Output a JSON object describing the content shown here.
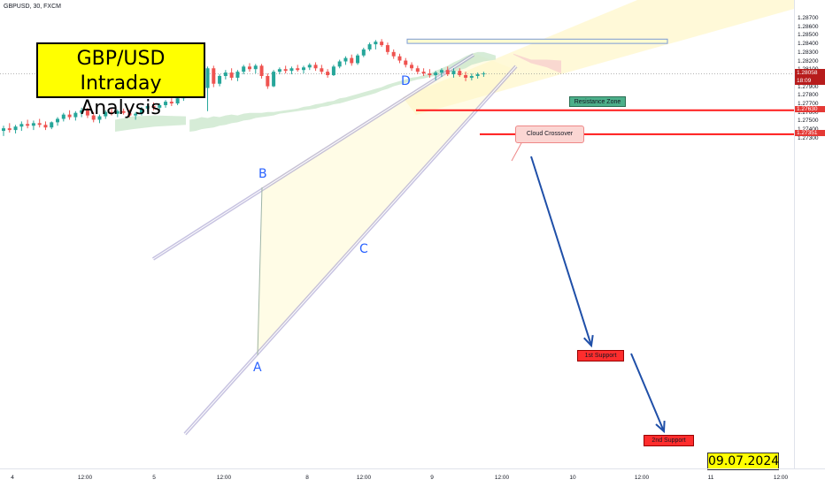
{
  "header": {
    "ticker": "GBPUSD, 30, FXCM"
  },
  "title": {
    "line1": "GBP/USD",
    "line2": "Intraday Analysis"
  },
  "date_label": "09.07.2024",
  "annotations": {
    "resistance_zone": "Resistance Zone",
    "cloud_crossover": "Cloud Crossover",
    "support_1": "1st Support",
    "support_2": "2nd Support",
    "point_a": "A",
    "point_b": "B",
    "point_c": "C",
    "point_d": "D"
  },
  "colors": {
    "bull": "#26a69a",
    "bear": "#ef5350",
    "support_line": "#ff1a1a",
    "channel": "#9b93c9",
    "arrow": "#1f4fa8",
    "cloud_green": "#c8e6c9",
    "cloud_red": "#f8d4cf"
  },
  "chart_data": {
    "type": "candlestick",
    "symbol": "GBPUSD",
    "timeframe": "30",
    "source": "FXCM",
    "ylim": [
      1.2725,
      1.288
    ],
    "y_ticks": [
      "1.28700",
      "1.28600",
      "1.28500",
      "1.28400",
      "1.28300",
      "1.28200",
      "1.28100",
      "1.28000",
      "1.27900",
      "1.27800",
      "1.27700",
      "1.27600",
      "1.27500",
      "1.27400",
      "1.27300"
    ],
    "x_ticks": [
      "4",
      "12:00",
      "5",
      "12:00",
      "8",
      "12:00",
      "9",
      "12:00",
      "10",
      "12:00",
      "11",
      "12:00"
    ],
    "current_price": {
      "value": "1.28058",
      "countdown": "18:09"
    },
    "support_levels": [
      {
        "label": "1st Support",
        "value": "1.27630"
      },
      {
        "label": "2nd Support",
        "value": "1.27351"
      }
    ],
    "resistance_zone": {
      "from": 1.2841,
      "to": 1.2846
    },
    "candles": [
      {
        "o": 1.2739,
        "h": 1.2745,
        "l": 1.2733,
        "c": 1.2742
      },
      {
        "o": 1.2742,
        "h": 1.2748,
        "l": 1.2737,
        "c": 1.274
      },
      {
        "o": 1.274,
        "h": 1.2746,
        "l": 1.2736,
        "c": 1.2744
      },
      {
        "o": 1.2744,
        "h": 1.275,
        "l": 1.2739,
        "c": 1.2747
      },
      {
        "o": 1.2747,
        "h": 1.2752,
        "l": 1.2742,
        "c": 1.2745
      },
      {
        "o": 1.2745,
        "h": 1.2751,
        "l": 1.274,
        "c": 1.2748
      },
      {
        "o": 1.2748,
        "h": 1.2753,
        "l": 1.2743,
        "c": 1.2746
      },
      {
        "o": 1.2746,
        "h": 1.275,
        "l": 1.274,
        "c": 1.2743
      },
      {
        "o": 1.2743,
        "h": 1.275,
        "l": 1.2741,
        "c": 1.2749
      },
      {
        "o": 1.2749,
        "h": 1.2755,
        "l": 1.2745,
        "c": 1.2753
      },
      {
        "o": 1.2753,
        "h": 1.276,
        "l": 1.275,
        "c": 1.2758
      },
      {
        "o": 1.2758,
        "h": 1.2763,
        "l": 1.2752,
        "c": 1.2755
      },
      {
        "o": 1.2755,
        "h": 1.2762,
        "l": 1.2751,
        "c": 1.276
      },
      {
        "o": 1.276,
        "h": 1.2766,
        "l": 1.2755,
        "c": 1.2763
      },
      {
        "o": 1.2763,
        "h": 1.2766,
        "l": 1.2754,
        "c": 1.2757
      },
      {
        "o": 1.2757,
        "h": 1.2761,
        "l": 1.2749,
        "c": 1.2752
      },
      {
        "o": 1.2752,
        "h": 1.2758,
        "l": 1.2748,
        "c": 1.2756
      },
      {
        "o": 1.2756,
        "h": 1.2763,
        "l": 1.2753,
        "c": 1.2761
      },
      {
        "o": 1.2761,
        "h": 1.2765,
        "l": 1.2757,
        "c": 1.2759
      },
      {
        "o": 1.2759,
        "h": 1.2764,
        "l": 1.2755,
        "c": 1.2762
      },
      {
        "o": 1.2762,
        "h": 1.2765,
        "l": 1.2758,
        "c": 1.276
      },
      {
        "o": 1.276,
        "h": 1.2764,
        "l": 1.2755,
        "c": 1.2757
      },
      {
        "o": 1.2757,
        "h": 1.2761,
        "l": 1.2752,
        "c": 1.2759
      },
      {
        "o": 1.2759,
        "h": 1.2767,
        "l": 1.2757,
        "c": 1.2765
      },
      {
        "o": 1.2765,
        "h": 1.277,
        "l": 1.2761,
        "c": 1.2768
      },
      {
        "o": 1.2768,
        "h": 1.2772,
        "l": 1.2763,
        "c": 1.2766
      },
      {
        "o": 1.2766,
        "h": 1.2771,
        "l": 1.2762,
        "c": 1.2769
      },
      {
        "o": 1.2769,
        "h": 1.2775,
        "l": 1.2766,
        "c": 1.2773
      },
      {
        "o": 1.2773,
        "h": 1.2777,
        "l": 1.2768,
        "c": 1.2771
      },
      {
        "o": 1.2771,
        "h": 1.2779,
        "l": 1.2769,
        "c": 1.2777
      },
      {
        "o": 1.2777,
        "h": 1.2784,
        "l": 1.2774,
        "c": 1.2782
      },
      {
        "o": 1.2782,
        "h": 1.2788,
        "l": 1.2778,
        "c": 1.2786
      },
      {
        "o": 1.2786,
        "h": 1.2795,
        "l": 1.2783,
        "c": 1.2793
      },
      {
        "o": 1.2793,
        "h": 1.2797,
        "l": 1.2785,
        "c": 1.2789
      },
      {
        "o": 1.2789,
        "h": 1.2814,
        "l": 1.2762,
        "c": 1.2812
      },
      {
        "o": 1.2812,
        "h": 1.2815,
        "l": 1.279,
        "c": 1.2794
      },
      {
        "o": 1.2794,
        "h": 1.2805,
        "l": 1.2791,
        "c": 1.2803
      },
      {
        "o": 1.2803,
        "h": 1.281,
        "l": 1.2799,
        "c": 1.2807
      },
      {
        "o": 1.2807,
        "h": 1.2812,
        "l": 1.2798,
        "c": 1.2801
      },
      {
        "o": 1.2801,
        "h": 1.281,
        "l": 1.2797,
        "c": 1.2808
      },
      {
        "o": 1.2808,
        "h": 1.2816,
        "l": 1.2805,
        "c": 1.2814
      },
      {
        "o": 1.2814,
        "h": 1.2818,
        "l": 1.2808,
        "c": 1.2811
      },
      {
        "o": 1.2811,
        "h": 1.2817,
        "l": 1.2806,
        "c": 1.2815
      },
      {
        "o": 1.2815,
        "h": 1.2817,
        "l": 1.28,
        "c": 1.2803
      },
      {
        "o": 1.2803,
        "h": 1.2806,
        "l": 1.2788,
        "c": 1.2791
      },
      {
        "o": 1.2791,
        "h": 1.281,
        "l": 1.279,
        "c": 1.2808
      },
      {
        "o": 1.2808,
        "h": 1.2813,
        "l": 1.2805,
        "c": 1.2811
      },
      {
        "o": 1.2811,
        "h": 1.2815,
        "l": 1.2806,
        "c": 1.2809
      },
      {
        "o": 1.2809,
        "h": 1.2814,
        "l": 1.2805,
        "c": 1.2812
      },
      {
        "o": 1.2812,
        "h": 1.2816,
        "l": 1.2808,
        "c": 1.281
      },
      {
        "o": 1.281,
        "h": 1.2815,
        "l": 1.2806,
        "c": 1.2813
      },
      {
        "o": 1.2813,
        "h": 1.2818,
        "l": 1.281,
        "c": 1.2816
      },
      {
        "o": 1.2816,
        "h": 1.2819,
        "l": 1.2809,
        "c": 1.2812
      },
      {
        "o": 1.2812,
        "h": 1.2816,
        "l": 1.2805,
        "c": 1.2808
      },
      {
        "o": 1.2808,
        "h": 1.2811,
        "l": 1.2801,
        "c": 1.2804
      },
      {
        "o": 1.2804,
        "h": 1.2816,
        "l": 1.2803,
        "c": 1.2814
      },
      {
        "o": 1.2814,
        "h": 1.2822,
        "l": 1.2812,
        "c": 1.282
      },
      {
        "o": 1.282,
        "h": 1.2826,
        "l": 1.2816,
        "c": 1.2824
      },
      {
        "o": 1.2824,
        "h": 1.2828,
        "l": 1.2815,
        "c": 1.2818
      },
      {
        "o": 1.2818,
        "h": 1.2829,
        "l": 1.2816,
        "c": 1.2827
      },
      {
        "o": 1.2827,
        "h": 1.2836,
        "l": 1.2825,
        "c": 1.2834
      },
      {
        "o": 1.2834,
        "h": 1.2842,
        "l": 1.2832,
        "c": 1.284
      },
      {
        "o": 1.284,
        "h": 1.2845,
        "l": 1.2834,
        "c": 1.2843
      },
      {
        "o": 1.2843,
        "h": 1.2846,
        "l": 1.2837,
        "c": 1.2839
      },
      {
        "o": 1.2839,
        "h": 1.2842,
        "l": 1.2828,
        "c": 1.2831
      },
      {
        "o": 1.2831,
        "h": 1.2834,
        "l": 1.2823,
        "c": 1.2826
      },
      {
        "o": 1.2826,
        "h": 1.2829,
        "l": 1.2818,
        "c": 1.2821
      },
      {
        "o": 1.2821,
        "h": 1.2824,
        "l": 1.2813,
        "c": 1.2816
      },
      {
        "o": 1.2816,
        "h": 1.2819,
        "l": 1.2809,
        "c": 1.2812
      },
      {
        "o": 1.2812,
        "h": 1.2815,
        "l": 1.2805,
        "c": 1.2808
      },
      {
        "o": 1.2808,
        "h": 1.2812,
        "l": 1.2803,
        "c": 1.2806
      },
      {
        "o": 1.2806,
        "h": 1.2811,
        "l": 1.2801,
        "c": 1.2804
      },
      {
        "o": 1.2804,
        "h": 1.2809,
        "l": 1.2798,
        "c": 1.2807
      },
      {
        "o": 1.2807,
        "h": 1.2812,
        "l": 1.2802,
        "c": 1.281
      },
      {
        "o": 1.281,
        "h": 1.2814,
        "l": 1.2803,
        "c": 1.2805
      },
      {
        "o": 1.2805,
        "h": 1.2812,
        "l": 1.2801,
        "c": 1.2809
      },
      {
        "o": 1.2809,
        "h": 1.2812,
        "l": 1.2802,
        "c": 1.2804
      },
      {
        "o": 1.2804,
        "h": 1.2808,
        "l": 1.2797,
        "c": 1.2801
      },
      {
        "o": 1.2801,
        "h": 1.2806,
        "l": 1.2798,
        "c": 1.2803
      },
      {
        "o": 1.2803,
        "h": 1.2807,
        "l": 1.28,
        "c": 1.2805
      },
      {
        "o": 1.2805,
        "h": 1.2808,
        "l": 1.2802,
        "c": 1.2806
      }
    ],
    "ichimoku_cloud": {
      "upper": [
        1.2752,
        1.2753,
        1.2755,
        1.2754,
        1.2756,
        1.2755,
        1.2757,
        1.2758,
        1.2757,
        1.2759,
        1.276,
        1.276,
        1.276,
        1.2761,
        1.2761,
        1.2762,
        1.2763,
        1.2764,
        1.2765,
        1.2767,
        1.2768,
        1.277,
        1.2771,
        1.2773,
        1.2774,
        1.2777,
        1.2778,
        1.278,
        1.2782,
        1.2784,
        1.2786,
        1.2788,
        1.279,
        1.2793,
        1.2795,
        1.2797,
        1.2799,
        1.2801,
        1.2802,
        1.2804,
        1.2806,
        1.2809,
        1.2812,
        1.2815,
        1.2819,
        1.2822,
        1.2826,
        1.2829,
        1.2831,
        1.2831,
        1.2829,
        1.2827
      ],
      "lower": [
        1.2738,
        1.2739,
        1.2741,
        1.2742,
        1.2743,
        1.2745,
        1.2746,
        1.2748,
        1.2749,
        1.2751,
        1.2752,
        1.2754,
        1.2755,
        1.2756,
        1.2757,
        1.2759,
        1.276,
        1.2761,
        1.2762,
        1.2763,
        1.2764,
        1.2765,
        1.2767,
        1.2768,
        1.277,
        1.2771,
        1.2773,
        1.2775,
        1.2777,
        1.2779,
        1.2781,
        1.2783,
        1.2786,
        1.2788,
        1.2791,
        1.2793,
        1.2795,
        1.2797,
        1.2799,
        1.28,
        1.2802,
        1.2803,
        1.2805,
        1.2807,
        1.2808,
        1.281,
        1.2812,
        1.2816,
        1.2818,
        1.282,
        1.2821,
        1.2822
      ]
    },
    "projected_cloud": {
      "upper": [
        1.2829,
        1.2822,
        1.2822,
        1.2821
      ],
      "lower": [
        1.2828,
        1.2818,
        1.2813,
        1.2806
      ]
    }
  }
}
